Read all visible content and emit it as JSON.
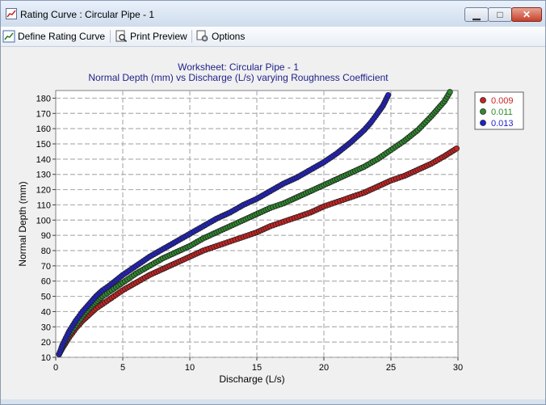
{
  "window": {
    "title": "Rating Curve : Circular Pipe - 1"
  },
  "toolbar": {
    "define_label": "Define Rating Curve",
    "print_preview_label": "Print Preview",
    "options_label": "Options"
  },
  "chart_data": {
    "type": "scatter",
    "title": "Worksheet: Circular Pipe - 1",
    "subtitle": "Normal Depth (mm) vs Discharge (L/s) varying Roughness Coefficient",
    "xlabel": "Discharge (L/s)",
    "ylabel": "Normal Depth (mm)",
    "xlim": [
      0,
      30
    ],
    "ylim": [
      10,
      185
    ],
    "xticks": [
      0,
      5,
      10,
      15,
      20,
      25,
      30
    ],
    "yticks": [
      10,
      20,
      30,
      40,
      50,
      60,
      70,
      80,
      90,
      100,
      110,
      120,
      130,
      140,
      150,
      160,
      170,
      180
    ],
    "grid": true,
    "legend_position": "top-right",
    "series": [
      {
        "name": "0.009",
        "color": "#cc2222",
        "x": [
          0.25,
          0.5,
          1.0,
          1.5,
          2.0,
          2.5,
          3.0,
          3.5,
          4.0,
          5.0,
          6.0,
          7.0,
          8.0,
          9.0,
          10.0,
          11.0,
          12.0,
          13.0,
          14.0,
          15.0,
          16.0,
          17.0,
          18.0,
          19.0,
          20.0,
          21.0,
          22.0,
          23.0,
          24.0,
          25.0,
          26.0,
          27.0,
          28.0,
          29.0,
          29.9
        ],
        "y": [
          12,
          16,
          23,
          29,
          34,
          38,
          42,
          45,
          48,
          54,
          59,
          64,
          68,
          72,
          76,
          80,
          83,
          86,
          89,
          92,
          96,
          99,
          102,
          105,
          109,
          112,
          115,
          118,
          122,
          126,
          129,
          133,
          137,
          142,
          147
        ]
      },
      {
        "name": "0.011",
        "color": "#2e8b2e",
        "x": [
          0.25,
          0.5,
          1.0,
          1.5,
          2.0,
          2.5,
          3.0,
          3.5,
          4.0,
          5.0,
          6.0,
          7.0,
          8.0,
          9.0,
          10.0,
          11.0,
          12.0,
          13.0,
          14.0,
          15.0,
          16.0,
          17.0,
          18.0,
          19.0,
          20.0,
          21.0,
          22.0,
          23.0,
          24.0,
          25.0,
          26.0,
          27.0,
          28.0,
          28.5,
          29.0,
          29.4
        ],
        "y": [
          12,
          17,
          25,
          31,
          37,
          42,
          46,
          50,
          53,
          59,
          65,
          70,
          75,
          79,
          83,
          88,
          92,
          96,
          100,
          104,
          108,
          111,
          115,
          119,
          123,
          127,
          131,
          135,
          140,
          146,
          152,
          159,
          168,
          173,
          178,
          184
        ]
      },
      {
        "name": "0.013",
        "color": "#2222cc",
        "x": [
          0.25,
          0.5,
          1.0,
          1.5,
          2.0,
          2.5,
          3.0,
          3.5,
          4.0,
          5.0,
          6.0,
          7.0,
          8.0,
          9.0,
          10.0,
          11.0,
          12.0,
          13.0,
          14.0,
          15.0,
          16.0,
          17.0,
          18.0,
          19.0,
          20.0,
          21.0,
          22.0,
          23.0,
          23.5,
          24.0,
          24.4,
          24.8
        ],
        "y": [
          12,
          18,
          27,
          34,
          40,
          45,
          50,
          54,
          57,
          64,
          70,
          76,
          81,
          86,
          91,
          96,
          101,
          105,
          110,
          114,
          119,
          124,
          128,
          133,
          138,
          144,
          151,
          159,
          164,
          170,
          175,
          182
        ]
      }
    ]
  }
}
